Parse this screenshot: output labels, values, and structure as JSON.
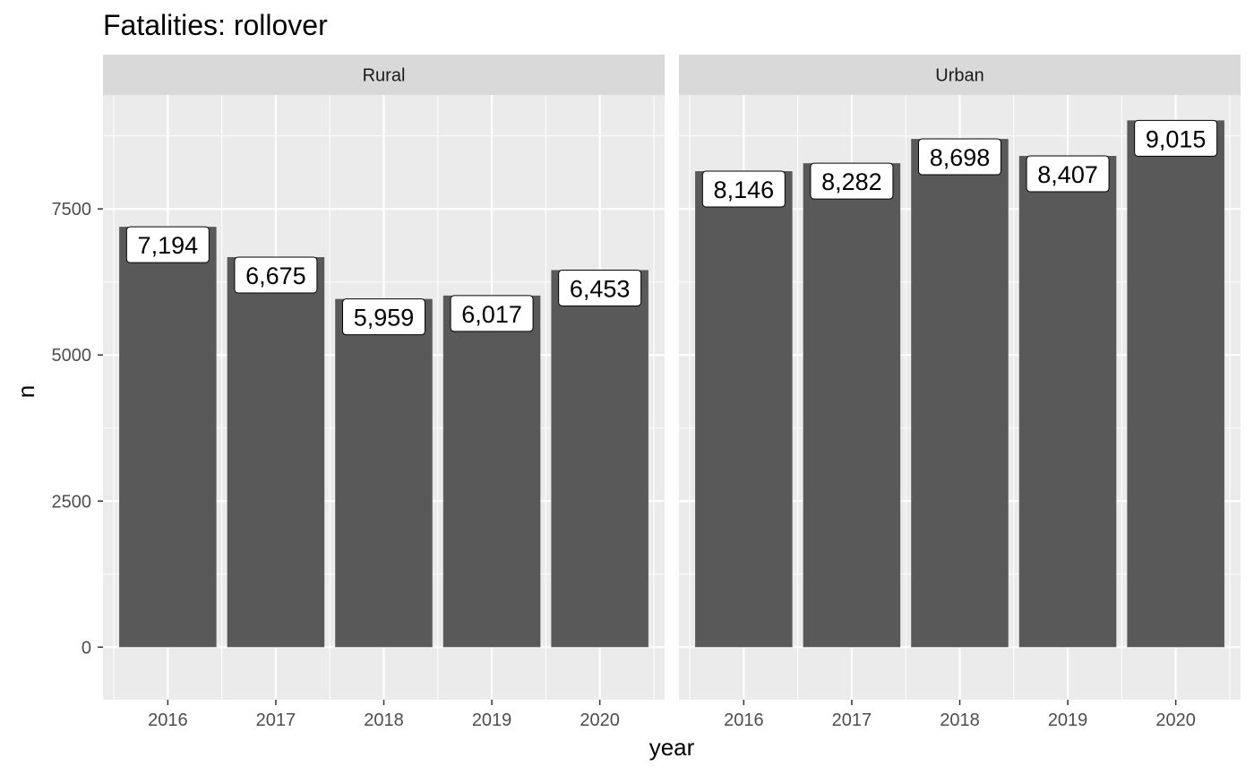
{
  "chart_data": {
    "type": "bar",
    "title": "Fatalities: rollover",
    "xlabel": "year",
    "ylabel": "n",
    "ylim": [
      -900,
      9450
    ],
    "yticks": [
      0,
      2500,
      5000,
      7500
    ],
    "ytick_labels": [
      "0",
      "2500",
      "5000",
      "7500"
    ],
    "categories": [
      "2016",
      "2017",
      "2018",
      "2019",
      "2020"
    ],
    "grid": true,
    "colors": {
      "bar": "#595959",
      "panel_bg": "#ebebeb",
      "strip_bg": "#d9d9d9",
      "grid": "#ffffff",
      "label_bg": "#ffffff",
      "tick": "#333333"
    },
    "facets": [
      {
        "name": "Rural",
        "values": [
          7194,
          6675,
          5959,
          6017,
          6453
        ],
        "labels": [
          "7,194",
          "6,675",
          "5,959",
          "6,017",
          "6,453"
        ]
      },
      {
        "name": "Urban",
        "values": [
          8146,
          8282,
          8698,
          8407,
          9015
        ],
        "labels": [
          "8,146",
          "8,282",
          "8,698",
          "8,407",
          "9,015"
        ]
      }
    ]
  }
}
